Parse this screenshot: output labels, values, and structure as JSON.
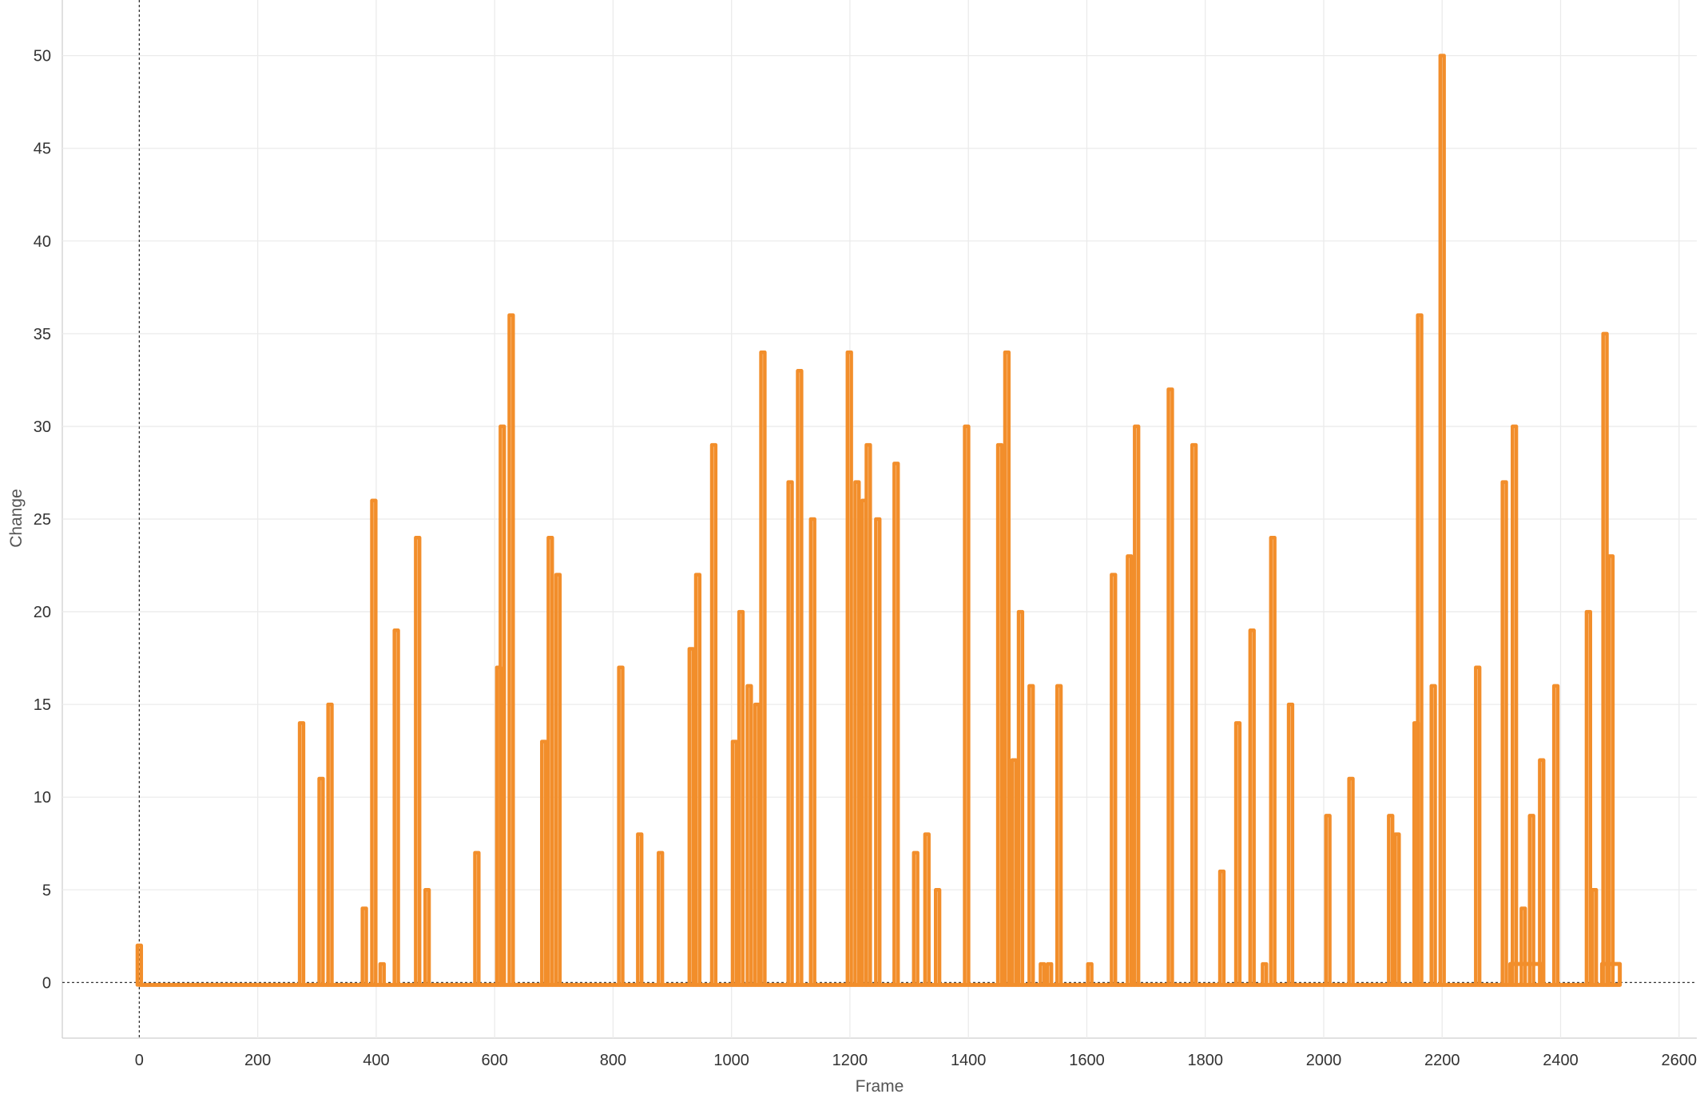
{
  "chart_data": {
    "type": "line",
    "title": "",
    "xlabel": "Frame",
    "ylabel": "Change",
    "xlim": [
      -130,
      2630
    ],
    "ylim": [
      -3,
      53
    ],
    "grid": true,
    "legend": "none",
    "reference_lines": {
      "x": 0,
      "y": 0
    },
    "x_ticks": [
      0,
      200,
      400,
      600,
      800,
      1000,
      1200,
      1400,
      1600,
      1800,
      2000,
      2200,
      2400,
      2600
    ],
    "y_ticks": [
      0,
      5,
      10,
      15,
      20,
      25,
      30,
      35,
      40,
      45,
      50
    ],
    "colors": {
      "series": "#f28e2b",
      "grid": "#ebebeb",
      "reference": "#333333",
      "axis": "#cfcfcf"
    },
    "series": [
      {
        "name": "",
        "spikes": [
          [
            0,
            2
          ],
          [
            274,
            14
          ],
          [
            307,
            11
          ],
          [
            322,
            15
          ],
          [
            380,
            4
          ],
          [
            396,
            26
          ],
          [
            410,
            1
          ],
          [
            434,
            19
          ],
          [
            470,
            24
          ],
          [
            486,
            5
          ],
          [
            570,
            7
          ],
          [
            607,
            17
          ],
          [
            613,
            30
          ],
          [
            628,
            36
          ],
          [
            683,
            13
          ],
          [
            694,
            24
          ],
          [
            707,
            22
          ],
          [
            813,
            17
          ],
          [
            845,
            8
          ],
          [
            880,
            7
          ],
          [
            932,
            18
          ],
          [
            943,
            22
          ],
          [
            970,
            29
          ],
          [
            1005,
            13
          ],
          [
            1016,
            20
          ],
          [
            1030,
            16
          ],
          [
            1043,
            15
          ],
          [
            1053,
            34
          ],
          [
            1099,
            27
          ],
          [
            1115,
            33
          ],
          [
            1137,
            25
          ],
          [
            1199,
            34
          ],
          [
            1212,
            27
          ],
          [
            1224,
            26
          ],
          [
            1231,
            29
          ],
          [
            1247,
            25
          ],
          [
            1278,
            28
          ],
          [
            1311,
            7
          ],
          [
            1330,
            8
          ],
          [
            1348,
            5
          ],
          [
            1397,
            30
          ],
          [
            1453,
            29
          ],
          [
            1465,
            34
          ],
          [
            1477,
            12
          ],
          [
            1488,
            20
          ],
          [
            1506,
            16
          ],
          [
            1525,
            1
          ],
          [
            1537,
            1
          ],
          [
            1553,
            16
          ],
          [
            1605,
            1
          ],
          [
            1645,
            22
          ],
          [
            1672,
            23
          ],
          [
            1684,
            30
          ],
          [
            1741,
            32
          ],
          [
            1781,
            29
          ],
          [
            1828,
            6
          ],
          [
            1855,
            14
          ],
          [
            1879,
            19
          ],
          [
            1900,
            1
          ],
          [
            1914,
            24
          ],
          [
            1944,
            15
          ],
          [
            2007,
            9
          ],
          [
            2046,
            11
          ],
          [
            2113,
            9
          ],
          [
            2124,
            8
          ],
          [
            2156,
            14
          ],
          [
            2162,
            36
          ],
          [
            2185,
            16
          ],
          [
            2200,
            50
          ],
          [
            2260,
            17
          ],
          [
            2305,
            27
          ],
          [
            2322,
            30
          ],
          [
            2337,
            4
          ],
          [
            2351,
            9
          ],
          [
            2368,
            12
          ],
          [
            2392,
            16
          ],
          [
            2447,
            20
          ],
          [
            2457,
            5
          ],
          [
            2475,
            35
          ],
          [
            2485,
            23
          ]
        ],
        "plateaus": [
          [
            2315,
            2368,
            1
          ],
          [
            2470,
            2500,
            1
          ]
        ]
      }
    ]
  }
}
